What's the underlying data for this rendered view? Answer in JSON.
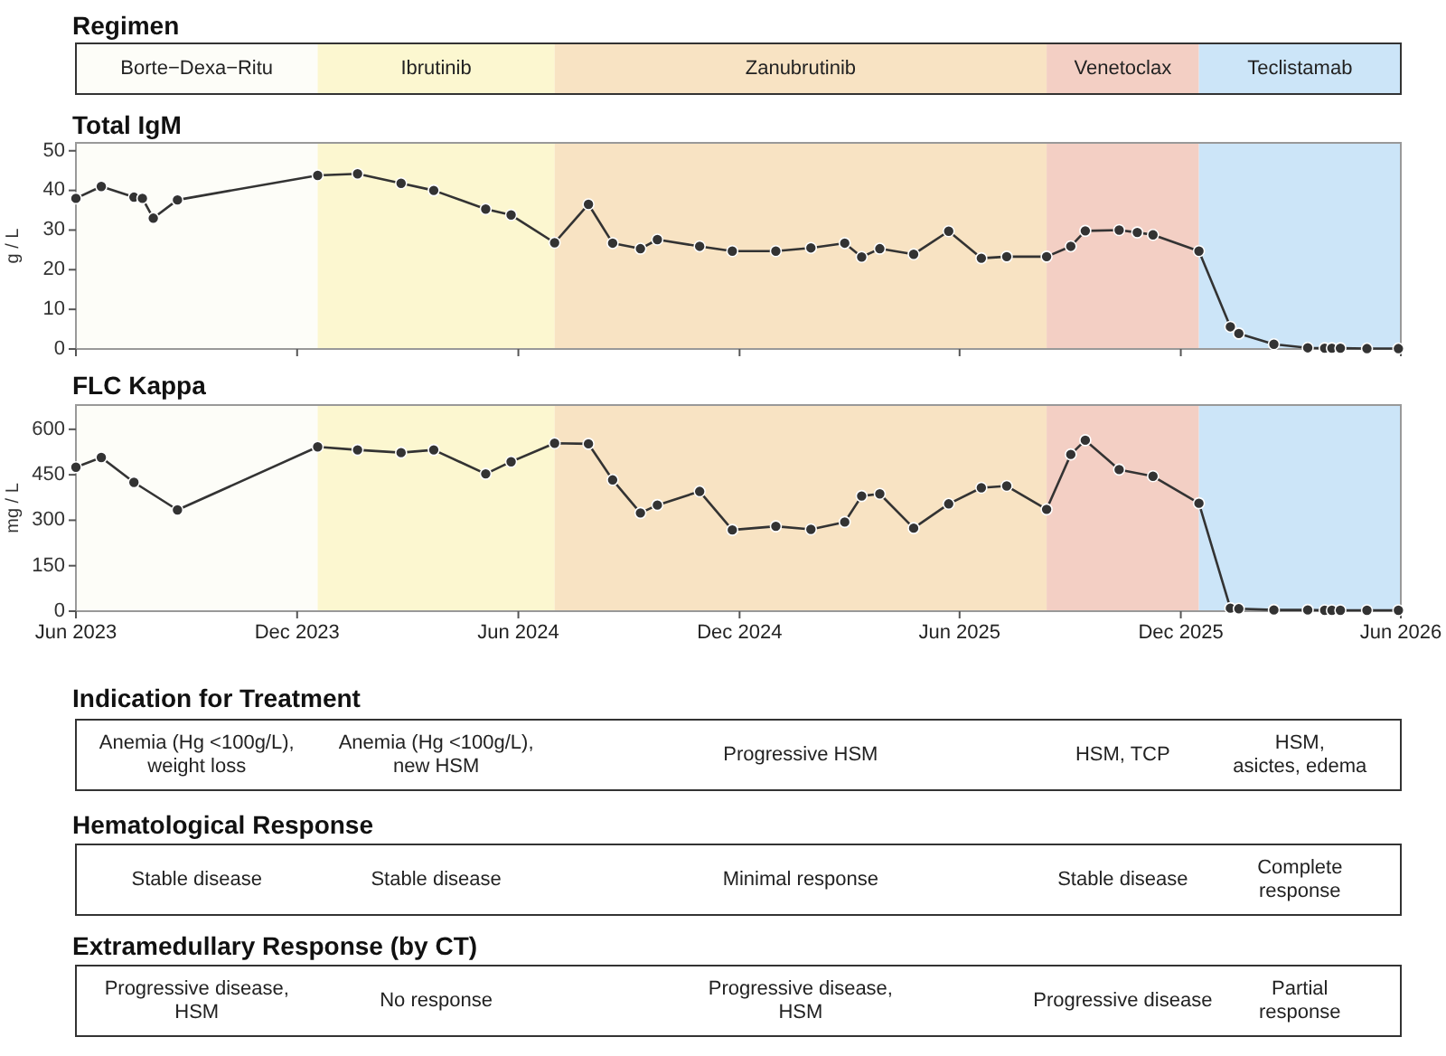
{
  "chart_data": [
    {
      "type": "other",
      "title": "Regimen",
      "annotations": [
        "Borte−Dexa−Ritu",
        "Ibrutinib",
        "Zanubrutinib",
        "Venetoclax",
        "Teclistamab"
      ]
    },
    {
      "type": "line",
      "title": "Total IgM",
      "ylabel": "g / L",
      "tick_labels": "y",
      "marker": "circle",
      "line_style": "solid",
      "x": [
        "2023-06-01",
        "2023-06-22",
        "2023-07-19",
        "2023-07-26",
        "2023-08-04",
        "2023-08-24",
        "2023-12-18",
        "2024-01-20",
        "2024-02-25",
        "2024-03-23",
        "2024-05-05",
        "2024-05-26",
        "2024-07-01",
        "2024-07-29",
        "2024-08-18",
        "2024-09-10",
        "2024-09-24",
        "2024-10-29",
        "2024-11-25",
        "2024-12-31",
        "2025-01-29",
        "2025-02-26",
        "2025-03-12",
        "2025-03-27",
        "2025-04-24",
        "2025-05-23",
        "2025-06-19",
        "2025-07-10",
        "2025-08-12",
        "2025-09-01",
        "2025-09-13",
        "2025-10-11",
        "2025-10-26",
        "2025-11-08",
        "2025-12-16",
        "2026-01-11",
        "2026-01-18",
        "2026-02-16",
        "2026-03-16",
        "2026-03-30",
        "2026-04-05",
        "2026-04-12",
        "2026-05-04",
        "2026-05-30"
      ],
      "series": [
        {
          "color": "#333333",
          "values": [
            38,
            41,
            38.3,
            38,
            33,
            37.6,
            43.8,
            44.2,
            41.8,
            40,
            35.3,
            33.8,
            26.8,
            36.5,
            26.7,
            25.3,
            27.6,
            25.9,
            24.7,
            24.7,
            25.5,
            26.7,
            23.2,
            25.3,
            23.9,
            29.7,
            22.9,
            23.3,
            23.3,
            25.9,
            29.8,
            30,
            29.4,
            28.8,
            24.7,
            5.6,
            3.9,
            1.2,
            0.3,
            0.2,
            0.2,
            0.2,
            0.1,
            0.1
          ]
        }
      ],
      "xlim": [
        "2023-06-01",
        "2026-06-01"
      ],
      "xticks": [
        {
          "value": "2023-06-01",
          "label": null
        },
        {
          "value": "2023-12-01",
          "label": null
        },
        {
          "value": "2024-06-01",
          "label": null
        },
        {
          "value": "2024-12-01",
          "label": null
        },
        {
          "value": "2025-06-01",
          "label": null
        },
        {
          "value": "2025-12-01",
          "label": null
        },
        {
          "value": "2026-06-01",
          "label": null
        }
      ],
      "ylim": [
        0,
        52
      ],
      "yticks": [
        0,
        10,
        20,
        30,
        40,
        50
      ],
      "bands": [
        {
          "axis": "x",
          "from": "2023-06-01",
          "to": "2023-12-18",
          "color": "#fdfdf8"
        },
        {
          "axis": "x",
          "from": "2023-12-18",
          "to": "2024-07-01",
          "color": "#fcf7d0"
        },
        {
          "axis": "x",
          "from": "2024-07-01",
          "to": "2025-08-12",
          "color": "#f8e3c3"
        },
        {
          "axis": "x",
          "from": "2025-08-12",
          "to": "2025-12-16",
          "color": "#f3cfc4"
        },
        {
          "axis": "x",
          "from": "2025-12-16",
          "to": "2026-06-01",
          "color": "#cce5f8"
        }
      ]
    },
    {
      "type": "line",
      "title": "FLC Kappa",
      "ylabel": "mg / L",
      "marker": "circle",
      "line_style": "solid",
      "x": [
        "2023-06-01",
        "2023-06-22",
        "2023-07-19",
        "2023-08-24",
        "2023-12-18",
        "2024-01-20",
        "2024-02-25",
        "2024-03-23",
        "2024-05-05",
        "2024-05-26",
        "2024-07-01",
        "2024-07-29",
        "2024-08-18",
        "2024-09-10",
        "2024-09-24",
        "2024-10-29",
        "2024-11-25",
        "2024-12-31",
        "2025-01-29",
        "2025-02-26",
        "2025-03-12",
        "2025-03-27",
        "2025-04-24",
        "2025-05-23",
        "2025-06-19",
        "2025-07-10",
        "2025-08-12",
        "2025-09-01",
        "2025-09-13",
        "2025-10-11",
        "2025-11-08",
        "2025-12-16",
        "2026-01-11",
        "2026-01-18",
        "2026-02-16",
        "2026-03-16",
        "2026-03-30",
        "2026-04-05",
        "2026-04-12",
        "2026-05-04",
        "2026-05-30"
      ],
      "series": [
        {
          "color": "#333333",
          "values": [
            475,
            507,
            425,
            334,
            542,
            532,
            523,
            532,
            453,
            493,
            554,
            552,
            433,
            324,
            350,
            395,
            268,
            280,
            270,
            294,
            380,
            387,
            274,
            354,
            407,
            413,
            336,
            517,
            564,
            467,
            445,
            356,
            10,
            8,
            4,
            4,
            3,
            3,
            3,
            3,
            3
          ]
        }
      ],
      "xlim": [
        "2023-06-01",
        "2026-06-01"
      ],
      "xticks": [
        {
          "value": "2023-06-01",
          "label": "Jun 2023"
        },
        {
          "value": "2023-12-01",
          "label": "Dec 2023"
        },
        {
          "value": "2024-06-01",
          "label": "Jun 2024"
        },
        {
          "value": "2024-12-01",
          "label": "Dec 2024"
        },
        {
          "value": "2025-06-01",
          "label": "Jun 2025"
        },
        {
          "value": "2025-12-01",
          "label": "Dec 2025"
        },
        {
          "value": "2026-06-01",
          "label": "Jun 2026"
        }
      ],
      "ylim": [
        0,
        680
      ],
      "yticks": [
        0,
        150,
        300,
        450,
        600
      ],
      "bands": [
        {
          "axis": "x",
          "from": "2023-06-01",
          "to": "2023-12-18",
          "color": "#fdfdf8"
        },
        {
          "axis": "x",
          "from": "2023-12-18",
          "to": "2024-07-01",
          "color": "#fcf7d0"
        },
        {
          "axis": "x",
          "from": "2024-07-01",
          "to": "2025-08-12",
          "color": "#f8e3c3"
        },
        {
          "axis": "x",
          "from": "2025-08-12",
          "to": "2025-12-16",
          "color": "#f3cfc4"
        },
        {
          "axis": "x",
          "from": "2025-12-16",
          "to": "2026-06-01",
          "color": "#cce5f8"
        }
      ]
    },
    {
      "type": "other",
      "title": "Indication for Treatment",
      "annotations": [
        "Anemia (Hg <100g/L),\nweight loss",
        "Anemia (Hg <100g/L),\nnew HSM",
        "Progressive HSM",
        "HSM, TCP",
        "HSM,\nasictes, edema"
      ]
    },
    {
      "type": "other",
      "title": "Hematological Response",
      "annotations": [
        "Stable disease",
        "Stable disease",
        "Minimal response",
        "Stable disease",
        "Complete\nresponse"
      ]
    },
    {
      "type": "other",
      "title": "Extramedullary Response (by CT)",
      "annotations": [
        "Progressive disease,\nHSM",
        "No response",
        "Progressive disease,\nHSM",
        "Progressive disease",
        "Partial\nresponse"
      ]
    }
  ]
}
